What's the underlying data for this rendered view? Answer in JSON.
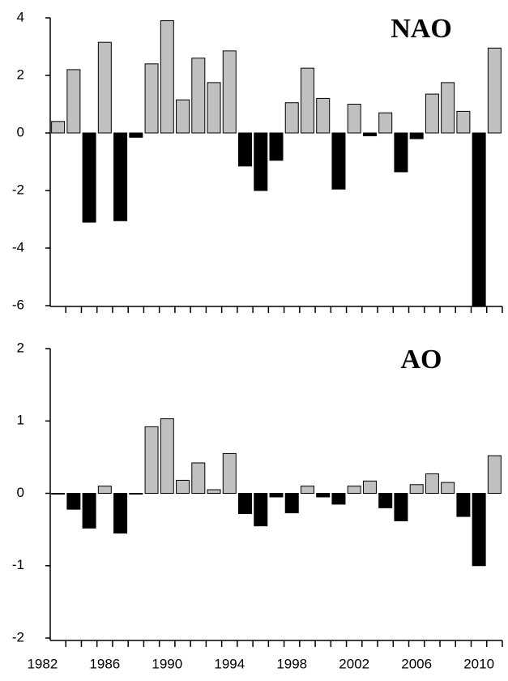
{
  "chart_data": [
    {
      "type": "bar",
      "title": "NAO",
      "x": [
        1983,
        1984,
        1985,
        1986,
        1987,
        1988,
        1989,
        1990,
        1991,
        1992,
        1993,
        1994,
        1995,
        1996,
        1997,
        1998,
        1999,
        2000,
        2001,
        2002,
        2003,
        2004,
        2005,
        2006,
        2007,
        2008,
        2009,
        2010,
        2011
      ],
      "values": [
        0.4,
        2.2,
        -3.1,
        3.15,
        -3.05,
        -0.15,
        2.4,
        3.9,
        1.15,
        2.6,
        1.75,
        2.85,
        -1.15,
        -2.0,
        -0.95,
        1.05,
        2.25,
        1.2,
        -1.95,
        1.0,
        -0.1,
        0.7,
        -1.35,
        -0.2,
        1.35,
        1.75,
        0.75,
        -6.0,
        2.95
      ],
      "color_positive": "#c0c0c0",
      "color_negative": "#000000",
      "xlim": [
        1982.5,
        2011.5
      ],
      "ylim": [
        -6,
        4
      ],
      "yticks": [
        -6,
        -4,
        -2,
        0,
        2,
        4
      ]
    },
    {
      "type": "bar",
      "title": "AO",
      "x": [
        1983,
        1984,
        1985,
        1986,
        1987,
        1988,
        1989,
        1990,
        1991,
        1992,
        1993,
        1994,
        1995,
        1996,
        1997,
        1998,
        1999,
        2000,
        2001,
        2002,
        2003,
        2004,
        2005,
        2006,
        2007,
        2008,
        2009,
        2010,
        2011
      ],
      "values": [
        -0.01,
        -0.22,
        -0.48,
        0.1,
        -0.55,
        -0.01,
        0.92,
        1.03,
        0.18,
        0.42,
        0.05,
        0.55,
        -0.28,
        -0.45,
        -0.05,
        -0.27,
        0.1,
        -0.05,
        -0.15,
        0.1,
        0.17,
        -0.2,
        -0.38,
        0.12,
        0.27,
        0.15,
        -0.32,
        -1.0,
        0.52
      ],
      "color_positive": "#c0c0c0",
      "color_negative": "#000000",
      "xlim": [
        1982.5,
        2011.5
      ],
      "ylim": [
        -2,
        2
      ],
      "yticks": [
        -2,
        -1,
        0,
        1,
        2
      ],
      "xticks": [
        1982,
        1986,
        1990,
        1994,
        1998,
        2002,
        2006,
        2010
      ]
    }
  ]
}
